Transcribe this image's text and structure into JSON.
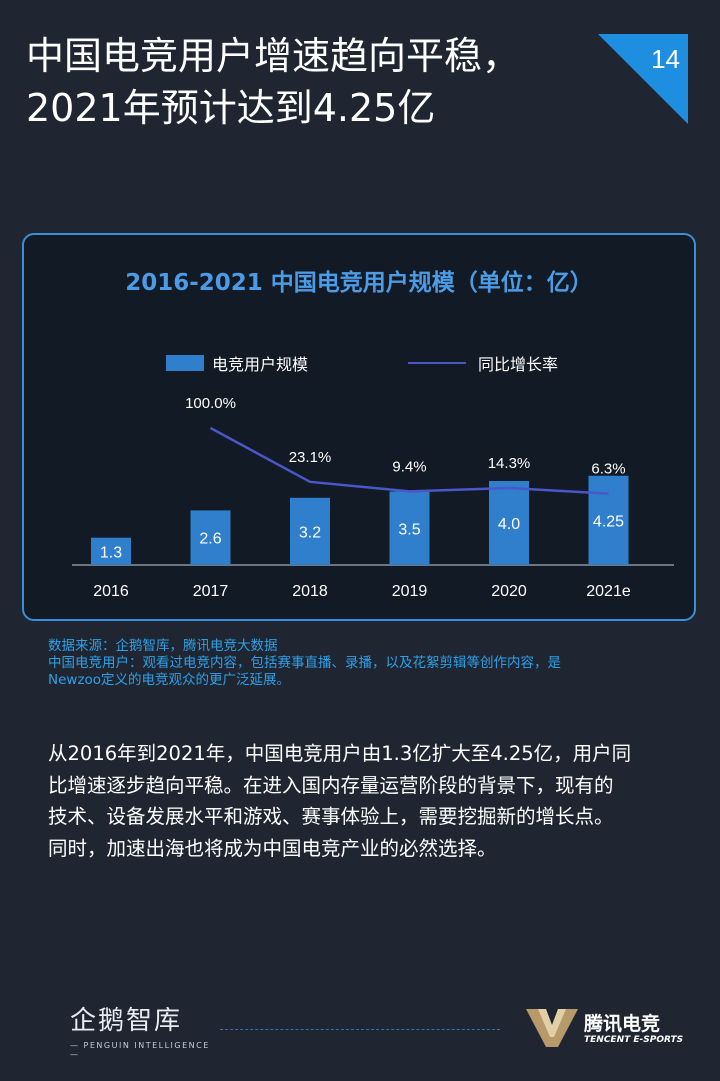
{
  "header": {
    "title_line1": "中国电竞用户增速趋向平稳，",
    "title_line2": "2021年预计达到4.25亿",
    "page_number": "14"
  },
  "chart_data": {
    "type": "bar",
    "title": "2016-2021 中国电竞用户规模（单位：亿）",
    "categories": [
      "2016",
      "2017",
      "2018",
      "2019",
      "2020",
      "2021e"
    ],
    "series": [
      {
        "name": "电竞用户规模",
        "type": "bar",
        "values": [
          1.3,
          2.6,
          3.2,
          3.5,
          4.0,
          4.25
        ],
        "labels": [
          "1.3",
          "2.6",
          "3.2",
          "3.5",
          "4.0",
          "4.25"
        ]
      },
      {
        "name": "同比增长率",
        "type": "line",
        "values": [
          null,
          100.0,
          23.1,
          9.4,
          14.3,
          6.3
        ],
        "labels": [
          "",
          "100.0%",
          "23.1%",
          "9.4%",
          "14.3%",
          "6.3%"
        ]
      }
    ],
    "legend_position": "top",
    "grid": false,
    "colors": {
      "bar": "#2f7fcc",
      "line": "#4b56c8",
      "title": "#4b9be6"
    }
  },
  "footnote": {
    "line1": "数据来源：企鹅智库，腾讯电竞大数据",
    "line2": "中国电竞用户：观看过电竞内容，包括赛事直播、录播，以及花絮剪辑等创作内容，是",
    "line3": "Newzoo定义的电竞观众的更广泛延展。"
  },
  "body": {
    "line1": "从2016年到2021年，中国电竞用户由1.3亿扩大至4.25亿，用户同",
    "line2": "比增速逐步趋向平稳。在进入国内存量运营阶段的背景下，现有的",
    "line3": "技术、设备发展水平和游戏、赛事体验上，需要挖掘新的增长点。",
    "line4": "同时，加速出海也将成为中国电竞产业的必然选择。"
  },
  "footer": {
    "left_brand_cn": "企鹅智库",
    "left_brand_en": "— PENGUIN INTELLIGENCE —",
    "right_brand_cn": "腾讯电竞",
    "right_brand_en": "TENCENT E-SPORTS"
  },
  "colors": {
    "background": "#1f2632",
    "accent": "#1e8fe0",
    "footnote": "#2ea0e8"
  }
}
